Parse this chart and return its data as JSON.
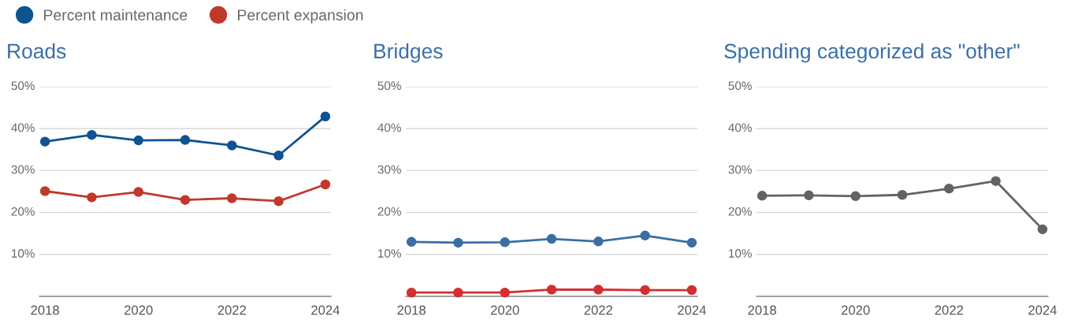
{
  "chart_data": [
    {
      "type": "line",
      "title": "Roads",
      "x": [
        2018,
        2019,
        2020,
        2021,
        2022,
        2023,
        2024
      ],
      "series": [
        {
          "name": "Percent maintenance",
          "color": "#0f5391",
          "values": [
            36.9,
            38.5,
            37.2,
            37.3,
            36.0,
            33.6,
            42.9
          ]
        },
        {
          "name": "Percent expansion",
          "color": "#c0392b",
          "values": [
            25.1,
            23.6,
            24.9,
            23.0,
            23.4,
            22.7,
            26.7
          ]
        }
      ],
      "xlim": [
        2017.88,
        2024.12
      ],
      "xticks": [
        2018,
        2020,
        2022,
        2024
      ],
      "ylim": [
        0,
        50
      ],
      "yticks": [
        {
          "value": 10,
          "label": "10%"
        },
        {
          "value": 20,
          "label": "20%"
        },
        {
          "value": 30,
          "label": "30%"
        },
        {
          "value": 40,
          "label": "40%"
        },
        {
          "value": 50,
          "label": "50%"
        }
      ],
      "grid": "y",
      "legend": "top left",
      "marker": "circle",
      "line_style": "solid"
    },
    {
      "type": "line",
      "title": "Bridges",
      "x": [
        2018,
        2019,
        2020,
        2021,
        2022,
        2023,
        2024
      ],
      "series": [
        {
          "color": "#3a6ea5",
          "values": [
            13.0,
            12.8,
            12.9,
            13.7,
            13.1,
            14.5,
            12.8
          ]
        },
        {
          "color": "#d32f2f",
          "values": [
            0.9,
            0.9,
            0.9,
            1.6,
            1.6,
            1.5,
            1.5
          ]
        }
      ],
      "xlim": [
        2017.88,
        2024.12
      ],
      "xticks": [
        2018,
        2020,
        2022,
        2024
      ],
      "ylim": [
        0,
        50
      ],
      "yticks": [
        {
          "value": 10,
          "label": "10%"
        },
        {
          "value": 20,
          "label": "20%"
        },
        {
          "value": 30,
          "label": "30%"
        },
        {
          "value": 40,
          "label": "40%"
        },
        {
          "value": 50,
          "label": "50%"
        }
      ],
      "grid": "y",
      "marker": "circle",
      "line_style": "solid"
    },
    {
      "type": "line",
      "title": "Spending categorized as \"other\"",
      "x": [
        2018,
        2019,
        2020,
        2021,
        2022,
        2023,
        2024
      ],
      "series": [
        {
          "color": "#636363",
          "values": [
            24.0,
            24.1,
            23.9,
            24.2,
            25.7,
            27.5,
            16.0
          ]
        }
      ],
      "xlim": [
        2017.88,
        2024.12
      ],
      "xticks": [
        2018,
        2020,
        2022,
        2024
      ],
      "ylim": [
        0,
        50
      ],
      "yticks": [
        {
          "value": 10,
          "label": "10%"
        },
        {
          "value": 20,
          "label": "20%"
        },
        {
          "value": 30,
          "label": "30%"
        },
        {
          "value": 40,
          "label": "40%"
        },
        {
          "value": 50,
          "label": "50%"
        }
      ],
      "grid": "y",
      "marker": "circle",
      "line_style": "solid"
    }
  ]
}
